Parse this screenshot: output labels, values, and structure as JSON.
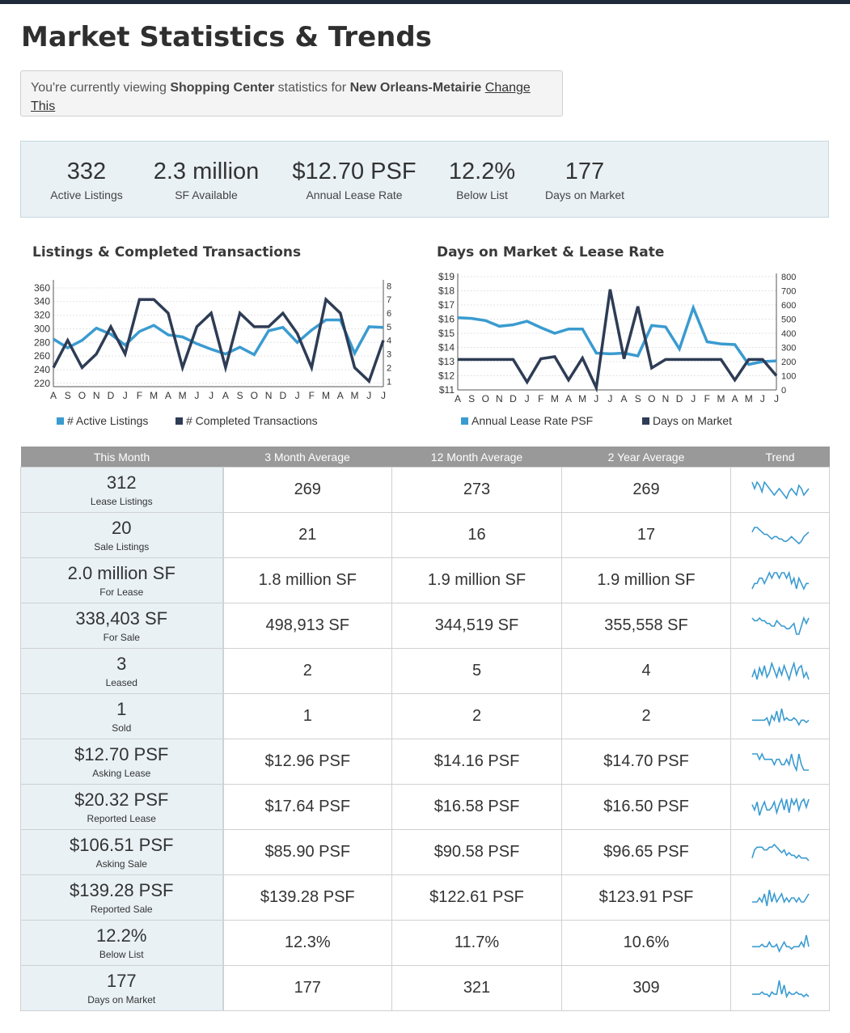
{
  "page": {
    "title": "Market Statistics & Trends"
  },
  "notice": {
    "prefix": "You're currently viewing ",
    "property_type": "Shopping Center",
    "middle": " statistics for ",
    "market": "New Orleans-Metairie",
    "change_link": "Change This"
  },
  "kpis": [
    {
      "value": "332",
      "label": "Active Listings"
    },
    {
      "value": "2.3 million",
      "label": "SF Available"
    },
    {
      "value": "$12.70 PSF",
      "label": "Annual Lease Rate"
    },
    {
      "value": "12.2%",
      "label": "Below List"
    },
    {
      "value": "177",
      "label": "Days on Market"
    }
  ],
  "colors": {
    "light_series": "#3a9bd0",
    "dark_series": "#2e3c55",
    "table_header": "#999999",
    "first_col_bg": "#e9f1f5"
  },
  "chart_data": [
    {
      "type": "line",
      "title": "Listings & Completed Transactions",
      "categories": [
        "A",
        "S",
        "O",
        "N",
        "D",
        "J",
        "F",
        "M",
        "A",
        "M",
        "J",
        "J",
        "A",
        "S",
        "O",
        "N",
        "D",
        "J",
        "F",
        "M",
        "A",
        "M",
        "J",
        "J"
      ],
      "left_axis": {
        "ticks": [
          "220",
          "240",
          "260",
          "280",
          "300",
          "320",
          "340",
          "360"
        ],
        "range": [
          215,
          367
        ]
      },
      "right_axis": {
        "ticks": [
          "1",
          "2",
          "3",
          "4",
          "5",
          "6",
          "7",
          "8"
        ],
        "range": [
          0.6,
          8.2
        ]
      },
      "grid": true,
      "legend_position": "bottom",
      "series": [
        {
          "name": "# Active Listings",
          "axis": "left",
          "values": [
            285,
            272,
            283,
            301,
            292,
            276,
            296,
            305,
            291,
            288,
            278,
            270,
            263,
            273,
            262,
            297,
            302,
            280,
            298,
            313,
            313,
            264,
            303,
            302
          ]
        },
        {
          "name": "# Completed Transactions",
          "axis": "right",
          "values": [
            2,
            4,
            2,
            3,
            5,
            3,
            7,
            7,
            6,
            2,
            5,
            6,
            2,
            6,
            5,
            5,
            6,
            4.5,
            2,
            7,
            6,
            2,
            1,
            4
          ]
        }
      ]
    },
    {
      "type": "line",
      "title": "Days on Market & Lease Rate",
      "categories": [
        "A",
        "S",
        "O",
        "N",
        "D",
        "J",
        "F",
        "M",
        "A",
        "M",
        "J",
        "J",
        "A",
        "S",
        "O",
        "N",
        "D",
        "J",
        "F",
        "M",
        "A",
        "M",
        "J",
        "J"
      ],
      "left_axis": {
        "ticks": [
          "$11",
          "$12",
          "$13",
          "$14",
          "$15",
          "$16",
          "$17",
          "$18",
          "$19"
        ],
        "range": [
          11,
          19
        ]
      },
      "right_axis": {
        "ticks": [
          "0",
          "100",
          "200",
          "300",
          "400",
          "500",
          "600",
          "700",
          "800"
        ],
        "range": [
          0,
          800
        ]
      },
      "grid": true,
      "legend_position": "bottom",
      "series": [
        {
          "name": "Annual Lease Rate PSF",
          "axis": "left",
          "values": [
            16.1,
            16.05,
            15.9,
            15.5,
            15.6,
            15.85,
            15.4,
            15.0,
            15.3,
            15.3,
            13.6,
            13.55,
            13.6,
            13.4,
            15.55,
            15.45,
            13.9,
            16.8,
            14.4,
            14.25,
            14.2,
            12.8,
            13.0,
            13.05
          ]
        },
        {
          "name": "Days on Market",
          "axis": "right",
          "values": [
            215,
            215,
            215,
            215,
            215,
            55,
            220,
            235,
            70,
            225,
            15,
            710,
            220,
            590,
            155,
            215,
            215,
            215,
            215,
            215,
            70,
            215,
            215,
            100
          ]
        }
      ]
    }
  ],
  "table": {
    "headers": [
      "This Month",
      "3 Month Average",
      "12 Month Average",
      "2 Year Average",
      "Trend"
    ],
    "rows": [
      {
        "month": "312",
        "label": "Lease Listings",
        "m3": "269",
        "m12": "273",
        "y2": "269",
        "trend": [
          6,
          4,
          6,
          5,
          3,
          6,
          5,
          4,
          3,
          2,
          3,
          4,
          3,
          2,
          1,
          3,
          4,
          3,
          2,
          5,
          4,
          2,
          3,
          4
        ]
      },
      {
        "month": "20",
        "label": "Sale Listings",
        "m3": "21",
        "m12": "16",
        "y2": "17",
        "trend": [
          6,
          8,
          8,
          7,
          6,
          5,
          5,
          4,
          3,
          4,
          4,
          3,
          3,
          2,
          2,
          3,
          4,
          3,
          2,
          1,
          2,
          4,
          5,
          6
        ]
      },
      {
        "month": "2.0 million SF",
        "label": "For Lease",
        "m3": "1.8 million SF",
        "m12": "1.9 million SF",
        "y2": "1.9 million SF",
        "trend": [
          3,
          4,
          4,
          5,
          5,
          4,
          5,
          6,
          5,
          6,
          6,
          5,
          6,
          6,
          5,
          6,
          4,
          5,
          3,
          5,
          4,
          3,
          4,
          4
        ]
      },
      {
        "month": "338,403 SF",
        "label": "For Sale",
        "m3": "498,913 SF",
        "m12": "344,519 SF",
        "y2": "355,558 SF",
        "trend": [
          7,
          6,
          6,
          7,
          6,
          6,
          5,
          5,
          4,
          4,
          6,
          5,
          4,
          4,
          3,
          3,
          4,
          5,
          1,
          1,
          4,
          7,
          5,
          7
        ]
      },
      {
        "month": "3",
        "label": "Leased",
        "m3": "2",
        "m12": "5",
        "y2": "4",
        "trend": [
          2,
          5,
          1,
          6,
          3,
          7,
          2,
          4,
          8,
          5,
          2,
          6,
          3,
          7,
          4,
          1,
          5,
          8,
          3,
          6,
          7,
          2,
          4,
          1
        ]
      },
      {
        "month": "1",
        "label": "Sold",
        "m3": "1",
        "m12": "2",
        "y2": "2",
        "trend": [
          3,
          3,
          3,
          3,
          3,
          3,
          4,
          1,
          5,
          3,
          7,
          2,
          8,
          3,
          4,
          3,
          3,
          4,
          3,
          1,
          3,
          3,
          2,
          3
        ]
      },
      {
        "month": "$12.70 PSF",
        "label": "Asking Lease",
        "m3": "$12.96 PSF",
        "m12": "$14.16 PSF",
        "y2": "$14.70 PSF",
        "trend": [
          5,
          5,
          5,
          4,
          5,
          4,
          4,
          4,
          4,
          3,
          4,
          4,
          3,
          3,
          4,
          3,
          5,
          3,
          2,
          5,
          3,
          2,
          2,
          2
        ]
      },
      {
        "month": "$20.32 PSF",
        "label": "Reported Lease",
        "m3": "$17.64 PSF",
        "m12": "$16.58 PSF",
        "y2": "$16.50 PSF",
        "trend": [
          5,
          3,
          6,
          1,
          4,
          6,
          3,
          3,
          4,
          6,
          2,
          5,
          7,
          3,
          7,
          2,
          7,
          5,
          7,
          3,
          6,
          7,
          4,
          7
        ]
      },
      {
        "month": "$106.51 PSF",
        "label": "Asking Sale",
        "m3": "$85.90 PSF",
        "m12": "$90.58 PSF",
        "y2": "$96.65 PSF",
        "trend": [
          2,
          5,
          6,
          6,
          6,
          5,
          5,
          6,
          6,
          7,
          6,
          5,
          4,
          5,
          3,
          4,
          3,
          3,
          2,
          3,
          2,
          2,
          2,
          1
        ]
      },
      {
        "month": "$139.28 PSF",
        "label": "Reported Sale",
        "m3": "$139.28 PSF",
        "m12": "$122.61 PSF",
        "y2": "$123.91 PSF",
        "trend": [
          3,
          3,
          3,
          4,
          3,
          5,
          2,
          6,
          3,
          5,
          3,
          4,
          5,
          3,
          4,
          3,
          4,
          4,
          3,
          4,
          3,
          3,
          4,
          5
        ]
      },
      {
        "month": "12.2%",
        "label": "Below List",
        "m3": "12.3%",
        "m12": "11.7%",
        "y2": "10.6%",
        "trend": [
          3,
          3,
          3,
          3,
          4,
          3,
          3,
          5,
          3,
          3,
          4,
          1,
          3,
          5,
          3,
          3,
          2,
          3,
          3,
          3,
          5,
          3,
          8,
          3
        ]
      },
      {
        "month": "177",
        "label": "Days on Market",
        "m3": "177",
        "m12": "321",
        "y2": "309",
        "trend": [
          3,
          3,
          3,
          3,
          4,
          3,
          3,
          2,
          4,
          3,
          3,
          9,
          3,
          7,
          2,
          4,
          3,
          3,
          4,
          3,
          3,
          2,
          3,
          2
        ]
      }
    ]
  }
}
